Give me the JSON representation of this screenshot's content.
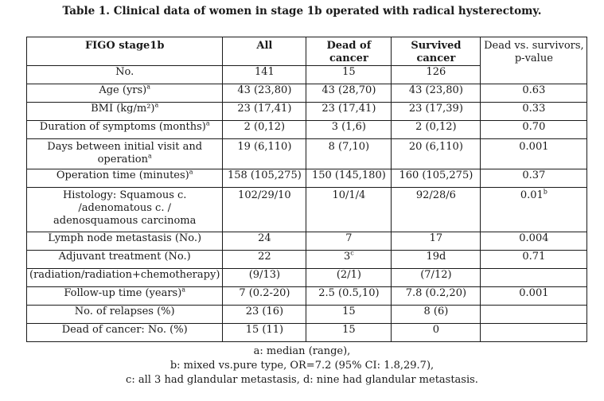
{
  "caption": "Table 1. Clinical data of women in stage 1b operated with radical hysterectomy.",
  "headers": [
    "FIGO stage1b",
    "All",
    "Dead of cancer",
    "Survived cancer",
    "Dead vs. survivors, p-value"
  ],
  "rows": [
    {
      "label": "No.",
      "sup": "",
      "all": "141",
      "dead": "15",
      "dead_sup": "",
      "surv": "126",
      "surv_sup": "",
      "p": "",
      "p_sup": ""
    },
    {
      "label": "Age (yrs)",
      "sup": "a",
      "all": "43 (23,80)",
      "dead": "43 (28,70)",
      "dead_sup": "",
      "surv": "43 (23,80)",
      "surv_sup": "",
      "p": "0.63",
      "p_sup": ""
    },
    {
      "label": "BMI (kg/m²)",
      "sup": "a",
      "all": "23 (17,41)",
      "dead": "23 (17,41)",
      "dead_sup": "",
      "surv": "23 (17,39)",
      "surv_sup": "",
      "p": "0.33",
      "p_sup": ""
    },
    {
      "label": "Duration of symptoms (months)",
      "sup": "a",
      "all": "2 (0,12)",
      "dead": "3 (1,6)",
      "dead_sup": "",
      "surv": "2 (0,12)",
      "surv_sup": "",
      "p": "0.70",
      "p_sup": ""
    },
    {
      "label": "Days between initial visit and operation",
      "sup": "a",
      "all": "19 (6,110)",
      "dead": "8 (7,10)",
      "dead_sup": "",
      "surv": "20 (6,110)",
      "surv_sup": "",
      "p": "0.001",
      "p_sup": ""
    },
    {
      "label": "Operation time (minutes)",
      "sup": "a",
      "all": "158 (105,275)",
      "dead": "150 (145,180)",
      "dead_sup": "",
      "surv": "160 (105,275)",
      "surv_sup": "",
      "p": "0.37",
      "p_sup": ""
    },
    {
      "label": "Histology: Squamous c. /adenomatous c. / adenosquamous carcinoma",
      "sup": "",
      "all": "102/29/10",
      "dead": "10/1/4",
      "dead_sup": "",
      "surv": "92/28/6",
      "surv_sup": "",
      "p": "0.01",
      "p_sup": "b"
    },
    {
      "label": "Lymph node metastasis (No.)",
      "sup": "",
      "all": "24",
      "dead": "7",
      "dead_sup": "",
      "surv": "17",
      "surv_sup": "",
      "p": "0.004",
      "p_sup": ""
    },
    {
      "label": "Adjuvant treatment (No.)",
      "sup": "",
      "all": "22",
      "dead": "3",
      "dead_sup": "c",
      "surv": "19d",
      "surv_sup": "",
      "p": "0.71",
      "p_sup": ""
    },
    {
      "label": "(radiation/radiation+chemotherapy)",
      "sup": "",
      "all": "(9/13)",
      "dead": "(2/1)",
      "dead_sup": "",
      "surv": "(7/12)",
      "surv_sup": "",
      "p": "",
      "p_sup": ""
    },
    {
      "label": "Follow-up time (years)",
      "sup": "a",
      "all": "7 (0.2-20)",
      "dead": "2.5 (0.5,10)",
      "dead_sup": "",
      "surv": "7.8 (0.2,20)",
      "surv_sup": "",
      "p": "0.001",
      "p_sup": ""
    },
    {
      "label": "No. of relapses (%)",
      "sup": "",
      "all": "23 (16)",
      "dead": "15",
      "dead_sup": "",
      "surv": "8 (6)",
      "surv_sup": "",
      "p": "",
      "p_sup": ""
    },
    {
      "label": "Dead of cancer: No. (%)",
      "sup": "",
      "all": "15 (11)",
      "dead": "15",
      "dead_sup": "",
      "surv": "0",
      "surv_sup": "",
      "p": "",
      "p_sup": ""
    }
  ],
  "notes": [
    "a: median (range),",
    "b: mixed vs.pure type, OR=7.2 (95% CI: 1.8,29.7),",
    "c: all 3 had glandular metastasis, d: nine had glandular metastasis."
  ]
}
